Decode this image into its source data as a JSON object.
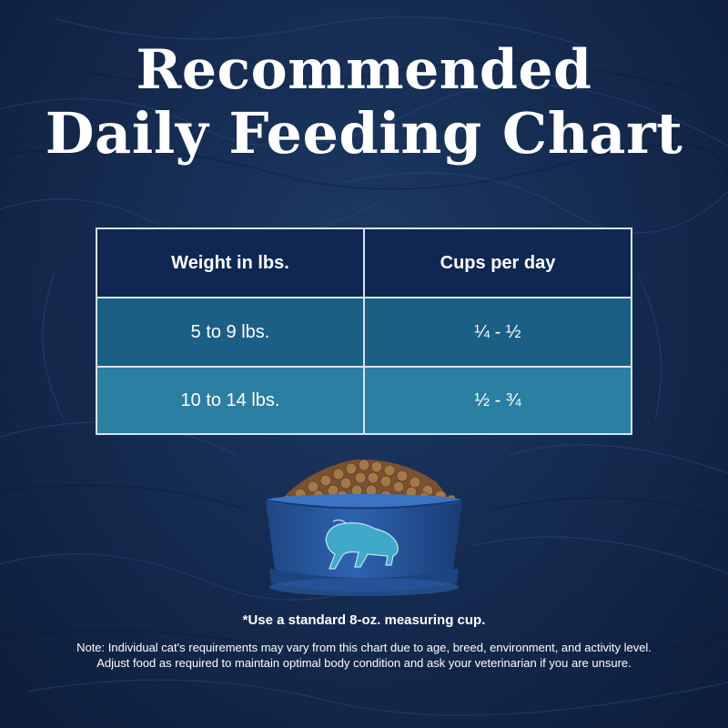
{
  "title": {
    "line1": "Recommended",
    "line2": "Daily Feeding Chart"
  },
  "table": {
    "headers": [
      "Weight in lbs.",
      "Cups per day"
    ],
    "rows": [
      [
        "5 to 9 lbs.",
        "¼ - ½"
      ],
      [
        "10 to 14 lbs.",
        "½ - ¾"
      ]
    ]
  },
  "footnote": "*Use a standard 8-oz. measuring cup.",
  "note": {
    "line1": "Note: Individual cat's requirements may vary from this chart due to age, breed, environment, and activity level.",
    "line2": "Adjust food as required to maintain optimal body condition and ask your veterinarian if you are unsure."
  },
  "colors": {
    "background": "#14294d",
    "header_cell": "#0f2752",
    "row1_cell": "#1c5f86",
    "row2_cell": "#2a7fa2",
    "bowl": "#27569e",
    "bison": "#3fa9c9"
  },
  "icons": {
    "bowl": "food-bowl-illustration",
    "bison": "bison-icon"
  }
}
